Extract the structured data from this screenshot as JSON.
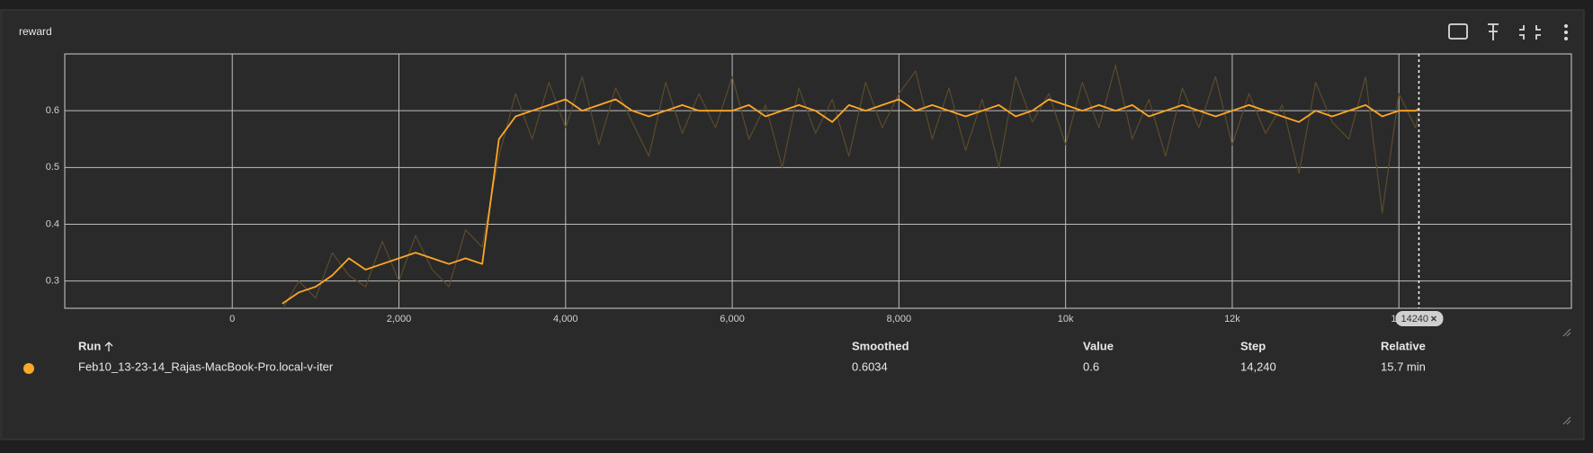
{
  "card": {
    "title": "reward"
  },
  "chart_data": {
    "type": "line",
    "x": [
      600,
      800,
      1000,
      1200,
      1400,
      1600,
      1800,
      2000,
      2200,
      2400,
      2600,
      2800,
      3000,
      3200,
      3400,
      3600,
      3800,
      4000,
      4200,
      4400,
      4600,
      4800,
      5000,
      5200,
      5400,
      5600,
      5800,
      6000,
      6200,
      6400,
      6600,
      6800,
      7000,
      7200,
      7400,
      7600,
      7800,
      8000,
      8200,
      8400,
      8600,
      8800,
      9000,
      9200,
      9400,
      9600,
      9800,
      10000,
      10200,
      10400,
      10600,
      10800,
      11000,
      11200,
      11400,
      11600,
      11800,
      12000,
      12200,
      12400,
      12600,
      12800,
      13000,
      13200,
      13400,
      13600,
      13800,
      14000,
      14200,
      14240
    ],
    "series": [
      {
        "color": "#5c4a2c",
        "values": [
          0.25,
          0.3,
          0.27,
          0.35,
          0.31,
          0.29,
          0.37,
          0.3,
          0.38,
          0.32,
          0.29,
          0.39,
          0.36,
          0.52,
          0.63,
          0.55,
          0.65,
          0.57,
          0.66,
          0.54,
          0.64,
          0.58,
          0.52,
          0.65,
          0.56,
          0.63,
          0.57,
          0.66,
          0.55,
          0.61,
          0.5,
          0.64,
          0.56,
          0.62,
          0.52,
          0.65,
          0.57,
          0.63,
          0.67,
          0.55,
          0.64,
          0.53,
          0.62,
          0.5,
          0.66,
          0.58,
          0.63,
          0.54,
          0.65,
          0.57,
          0.68,
          0.55,
          0.62,
          0.52,
          0.64,
          0.57,
          0.66,
          0.54,
          0.63,
          0.56,
          0.61,
          0.49,
          0.65,
          0.58,
          0.55,
          0.66,
          0.42,
          0.63,
          0.57,
          0.6
        ]
      },
      {
        "color": "#ffa726",
        "values": [
          0.26,
          0.28,
          0.29,
          0.31,
          0.34,
          0.32,
          0.33,
          0.34,
          0.35,
          0.34,
          0.33,
          0.34,
          0.33,
          0.55,
          0.59,
          0.6,
          0.61,
          0.62,
          0.6,
          0.61,
          0.62,
          0.6,
          0.59,
          0.6,
          0.61,
          0.6,
          0.6,
          0.6,
          0.61,
          0.59,
          0.6,
          0.61,
          0.6,
          0.58,
          0.61,
          0.6,
          0.61,
          0.62,
          0.6,
          0.61,
          0.6,
          0.59,
          0.6,
          0.61,
          0.59,
          0.6,
          0.62,
          0.61,
          0.6,
          0.61,
          0.6,
          0.61,
          0.59,
          0.6,
          0.61,
          0.6,
          0.59,
          0.6,
          0.61,
          0.6,
          0.59,
          0.58,
          0.6,
          0.59,
          0.6,
          0.61,
          0.59,
          0.6,
          0.6,
          0.6034
        ]
      }
    ],
    "xlim": [
      -2010,
      16070
    ],
    "ylim": [
      0.252,
      0.7
    ],
    "xticks": [
      0,
      {
        "value": 2000,
        "label": "2,000"
      },
      {
        "value": 4000,
        "label": "4,000"
      },
      {
        "value": 6000,
        "label": "6,000"
      },
      {
        "value": 8000,
        "label": "8,000"
      },
      {
        "value": 10000,
        "label": "10k"
      },
      {
        "value": 12000,
        "label": "12k"
      },
      {
        "value": 14000,
        "label": "14k"
      }
    ],
    "yticks": [
      0.3,
      0.4,
      0.5,
      0.6
    ],
    "grid": true,
    "hover_step": 14240
  },
  "table": {
    "headers": [
      "Run",
      "Smoothed",
      "Value",
      "Step",
      "Relative"
    ],
    "row": {
      "color": "#ffa726",
      "cells": [
        "Feb10_13-23-14_Rajas-MacBook-Pro.local-v-iter",
        "0.6034",
        "0.6",
        "14,240",
        "15.7 min"
      ]
    }
  }
}
